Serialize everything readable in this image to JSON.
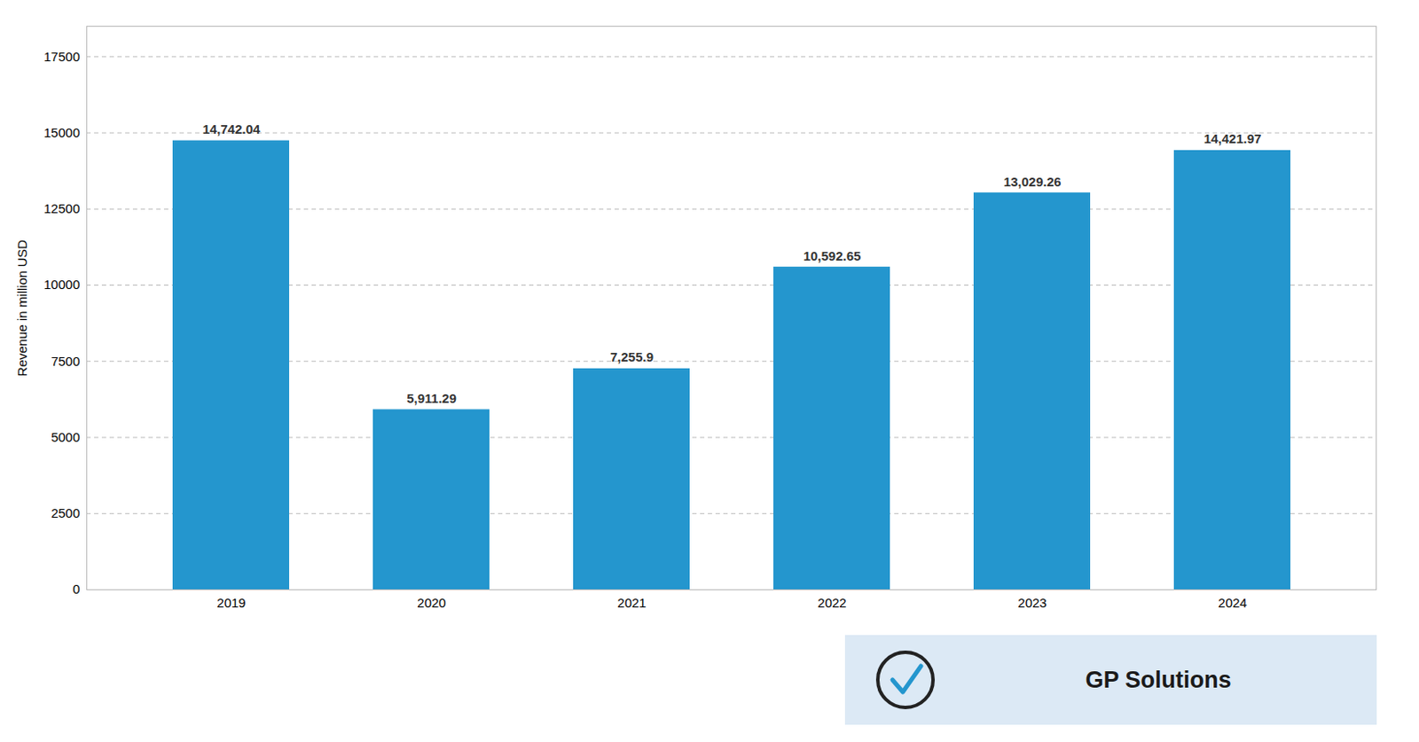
{
  "chart_data": {
    "type": "bar",
    "categories": [
      "2019",
      "2020",
      "2021",
      "2022",
      "2023",
      "2024"
    ],
    "values": [
      14742.04,
      5911.29,
      7255.9,
      10592.65,
      13029.26,
      14421.97
    ],
    "value_labels": [
      "14,742.04",
      "5,911.29",
      "7,255.9",
      "10,592.65",
      "13,029.26",
      "14,421.97"
    ],
    "data_labels": true,
    "color": "#2496CE",
    "ylabel": "Revenue in million USD",
    "ylim": [
      0,
      18500
    ],
    "yticks": [
      0,
      2500,
      5000,
      7500,
      10000,
      12500,
      15000,
      17500
    ],
    "grid": true,
    "annotations": [
      "GP Solutions"
    ]
  }
}
